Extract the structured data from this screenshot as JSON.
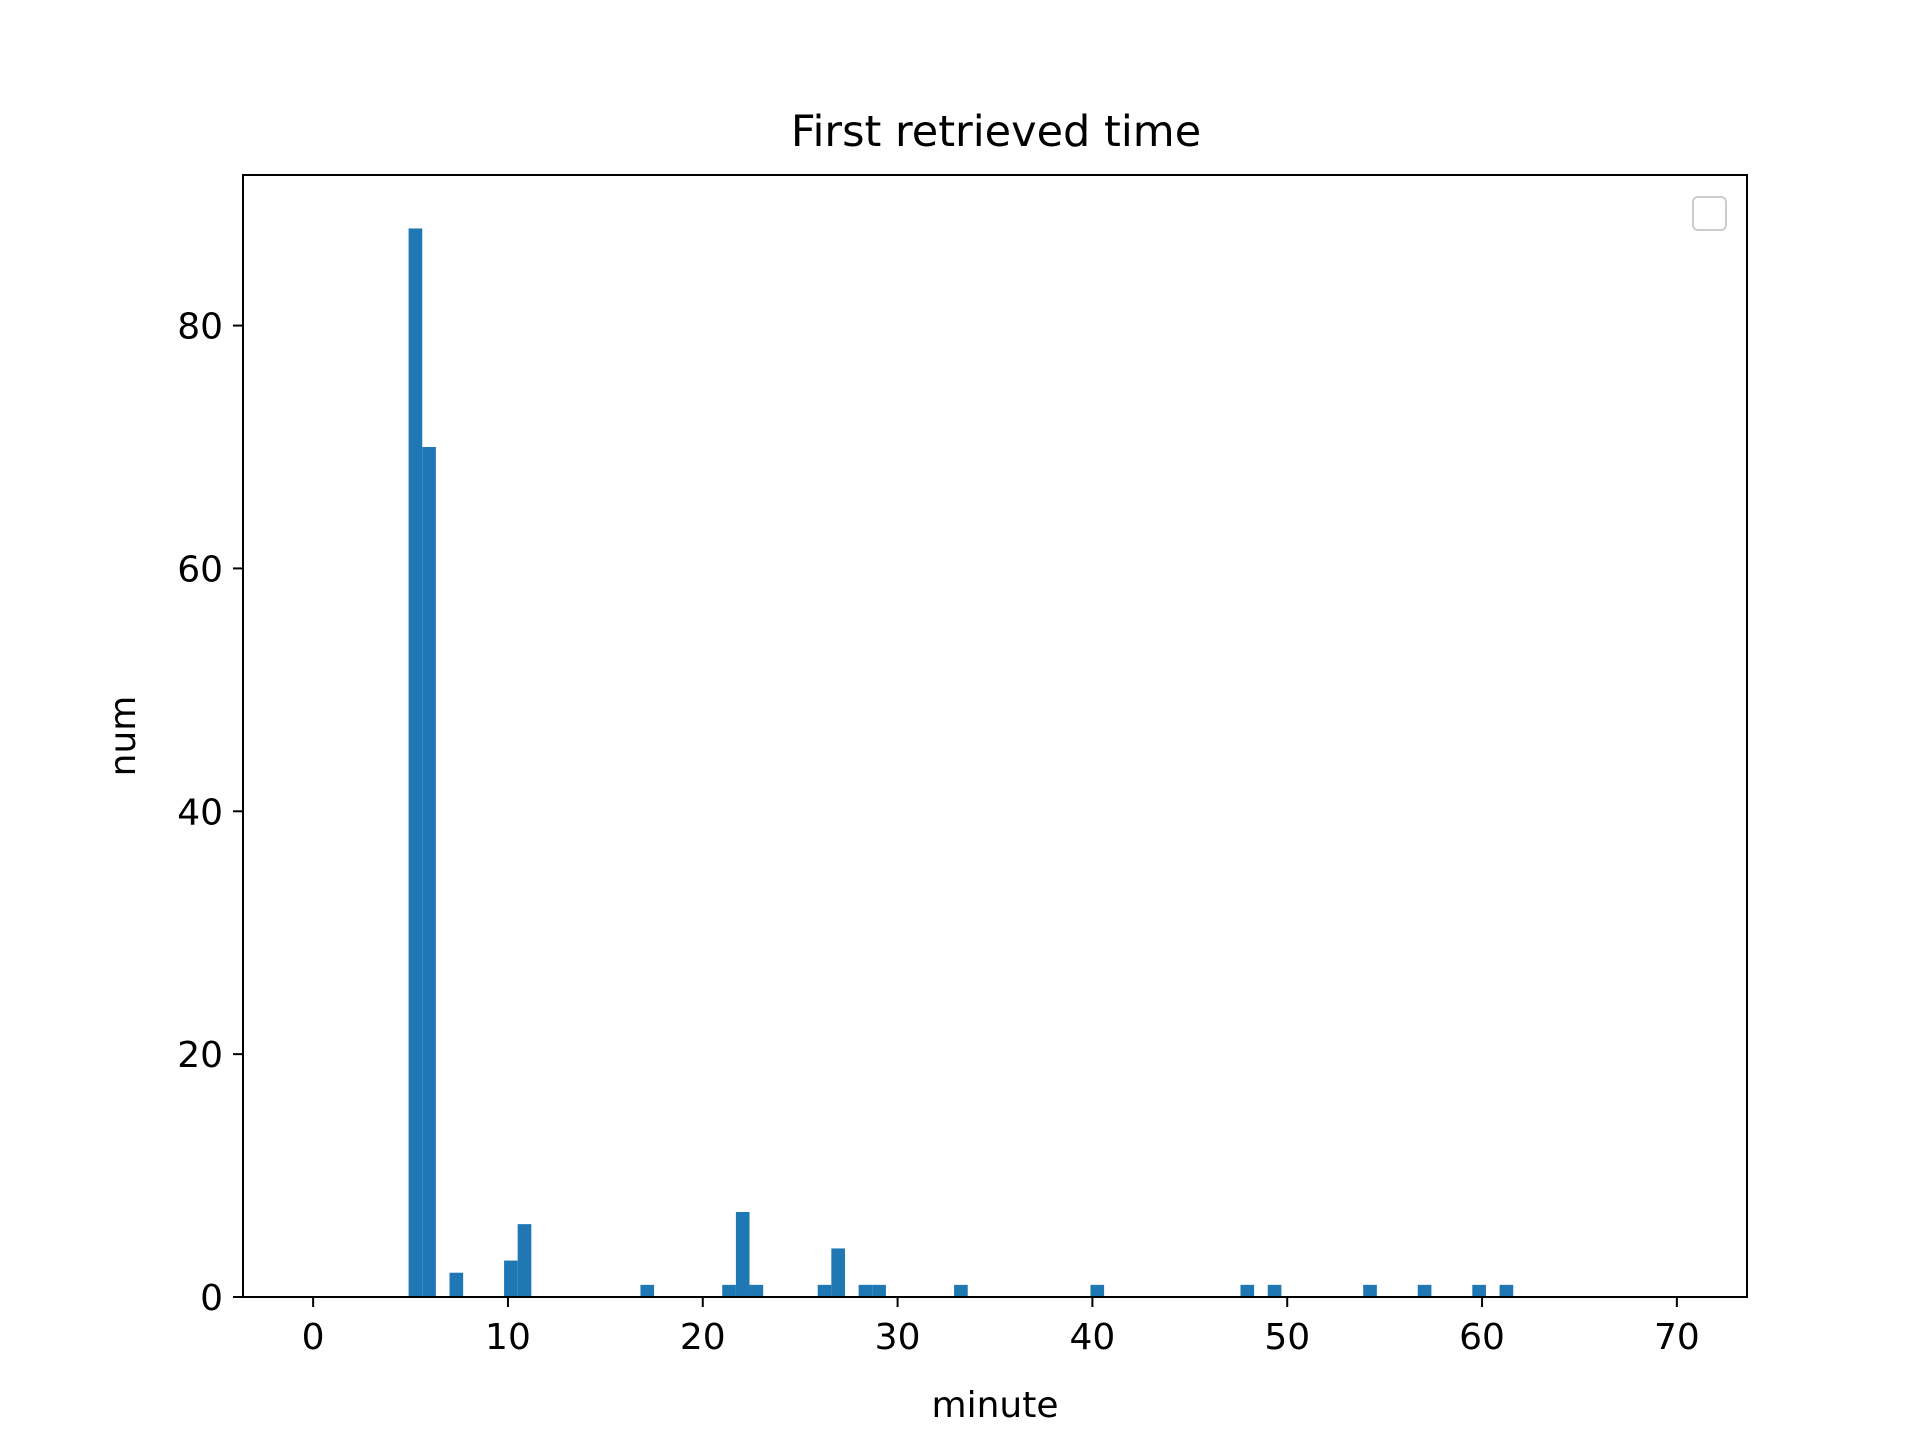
{
  "chart_data": {
    "type": "bar",
    "title": "First retrieved time",
    "xlabel": "minute",
    "ylabel": "num",
    "xlim": [
      -3.6,
      73.6
    ],
    "ylim": [
      0,
      92.4
    ],
    "xticks": [
      0,
      10,
      20,
      30,
      40,
      50,
      60,
      70
    ],
    "yticks": [
      0,
      20,
      40,
      60,
      80
    ],
    "bin_width": 0.7,
    "bars": [
      {
        "x": 4.9,
        "value": 88
      },
      {
        "x": 5.6,
        "value": 70
      },
      {
        "x": 7.0,
        "value": 2
      },
      {
        "x": 9.8,
        "value": 3
      },
      {
        "x": 10.5,
        "value": 6
      },
      {
        "x": 16.8,
        "value": 1
      },
      {
        "x": 21.0,
        "value": 1
      },
      {
        "x": 21.7,
        "value": 7
      },
      {
        "x": 22.4,
        "value": 1
      },
      {
        "x": 25.9,
        "value": 1
      },
      {
        "x": 26.6,
        "value": 4
      },
      {
        "x": 28.0,
        "value": 1
      },
      {
        "x": 28.7,
        "value": 1
      },
      {
        "x": 32.9,
        "value": 1
      },
      {
        "x": 39.9,
        "value": 1
      },
      {
        "x": 47.6,
        "value": 1
      },
      {
        "x": 49.0,
        "value": 1
      },
      {
        "x": 53.9,
        "value": 1
      },
      {
        "x": 56.7,
        "value": 1
      },
      {
        "x": 59.5,
        "value": 1
      },
      {
        "x": 60.9,
        "value": 1
      }
    ],
    "legend": {
      "placement": "top-right",
      "entries": []
    },
    "grid": false,
    "colors": {
      "bar": "#1f77b4",
      "axis": "#000000",
      "legend_border": "#cccccc"
    }
  }
}
